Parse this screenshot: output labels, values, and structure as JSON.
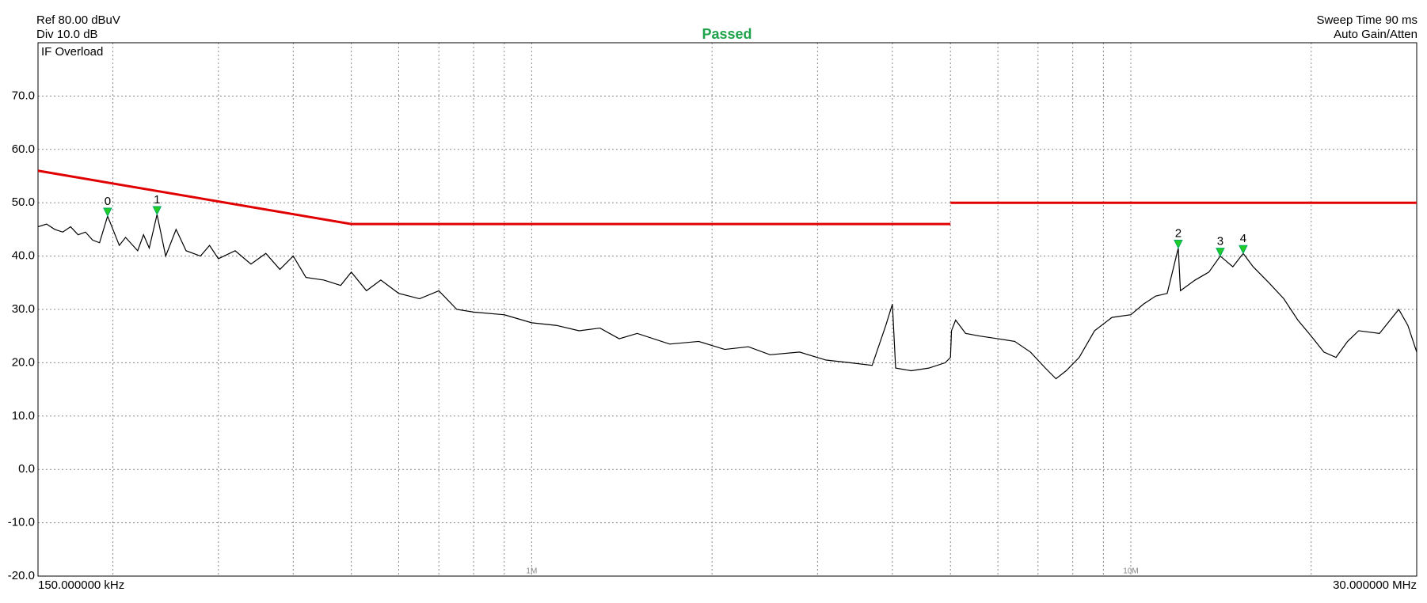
{
  "chart_data": {
    "type": "line",
    "title": "Passed",
    "ref_label": "Ref 80.00 dBuV",
    "div_label": "Div 10.0 dB",
    "sweep_label": "Sweep Time 90 ms",
    "gain_label": "Auto Gain/Atten",
    "status_label": "IF Overload",
    "log_x": true,
    "grid": true,
    "xlim": [
      0.15,
      30
    ],
    "ylim": [
      -20,
      80
    ],
    "xticks": [
      {
        "value": 0.15,
        "label": "150.000000 kHz"
      },
      {
        "value": 1,
        "label": "1M"
      },
      {
        "value": 10,
        "label": "10M"
      },
      {
        "value": 30,
        "label": "30.000000 MHz"
      }
    ],
    "xgrid_minor": [
      0.2,
      0.3,
      0.4,
      0.5,
      0.6,
      0.7,
      0.8,
      0.9,
      2,
      3,
      4,
      5,
      6,
      7,
      8,
      9,
      20
    ],
    "yticks": [
      {
        "value": -20,
        "label": "-20.0"
      },
      {
        "value": -10,
        "label": "-10.0"
      },
      {
        "value": 0,
        "label": "0.0"
      },
      {
        "value": 10,
        "label": "10.0"
      },
      {
        "value": 20,
        "label": "20.0"
      },
      {
        "value": 30,
        "label": "30.0"
      },
      {
        "value": 40,
        "label": "40.0"
      },
      {
        "value": 50,
        "label": "50.0"
      },
      {
        "value": 60,
        "label": "60.0"
      },
      {
        "value": 70,
        "label": "70.0"
      }
    ],
    "series": [
      {
        "color": "#e00000",
        "x": [
          0.15,
          0.5,
          5
        ],
        "values": [
          56,
          46,
          46
        ]
      },
      {
        "color": "#e00000",
        "x": [
          5,
          30
        ],
        "values": [
          50,
          50
        ]
      },
      {
        "color": "#000000",
        "x": [
          0.15,
          0.155,
          0.16,
          0.165,
          0.17,
          0.175,
          0.18,
          0.185,
          0.19,
          0.196,
          0.205,
          0.21,
          0.22,
          0.225,
          0.23,
          0.237,
          0.245,
          0.255,
          0.265,
          0.28,
          0.29,
          0.3,
          0.32,
          0.34,
          0.36,
          0.38,
          0.4,
          0.42,
          0.45,
          0.48,
          0.5,
          0.53,
          0.56,
          0.6,
          0.65,
          0.7,
          0.75,
          0.8,
          0.9,
          1.0,
          1.1,
          1.2,
          1.3,
          1.4,
          1.5,
          1.7,
          1.9,
          2.1,
          2.3,
          2.5,
          2.8,
          3.1,
          3.4,
          3.7,
          3.9,
          4.0,
          4.05,
          4.3,
          4.6,
          4.9,
          5.0,
          5.02,
          5.1,
          5.3,
          5.6,
          6.0,
          6.4,
          6.8,
          7.2,
          7.5,
          7.8,
          8.2,
          8.7,
          9.3,
          10,
          10.5,
          11,
          11.5,
          12.0,
          12.1,
          12.8,
          13.5,
          14.1,
          14.8,
          15.4,
          16,
          17,
          18,
          19,
          20,
          21,
          22,
          23,
          24,
          26,
          28,
          29,
          30
        ],
        "values": [
          45.5,
          46,
          45,
          44.5,
          45.5,
          44,
          44.5,
          43,
          42.5,
          47.5,
          42,
          43.5,
          41,
          44,
          41.5,
          47.8,
          40,
          45,
          41,
          40,
          42,
          39.5,
          41,
          38.5,
          40.5,
          37.5,
          40,
          36,
          35.5,
          34.5,
          37,
          33.5,
          35.5,
          33,
          32,
          33.5,
          30,
          29.5,
          29,
          27.5,
          27,
          26,
          26.5,
          24.5,
          25.5,
          23.5,
          24,
          22.5,
          23,
          21.5,
          22,
          20.5,
          20,
          19.5,
          27,
          31,
          19,
          18.5,
          19,
          20,
          21,
          26,
          28,
          25.5,
          25,
          24.5,
          24,
          22,
          19,
          17,
          18.5,
          21,
          26,
          28.5,
          29,
          31,
          32.5,
          33,
          41.5,
          33.5,
          35.5,
          37,
          40,
          38,
          40.5,
          38,
          35,
          32,
          28,
          25,
          22,
          21,
          24,
          26,
          25.5,
          30,
          27,
          22
        ]
      }
    ],
    "markers": {
      "color": "#22cc22",
      "labels": [
        "0",
        "1",
        "2",
        "3",
        "4"
      ],
      "x": [
        0.196,
        0.237,
        12.0,
        14.1,
        15.4
      ],
      "values": [
        47.5,
        47.8,
        41.5,
        40,
        40.5
      ]
    }
  }
}
